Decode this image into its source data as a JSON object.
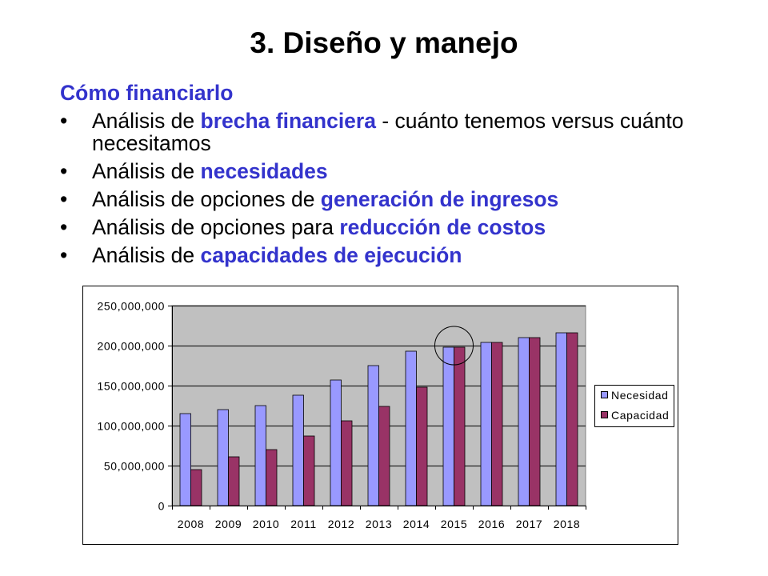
{
  "slide": {
    "title": "3. Diseño y manejo",
    "subtitle": "Cómo financiarlo",
    "bullet_marker": "•",
    "bullets": [
      {
        "prefix": "Análisis de ",
        "highlight": "brecha financiera",
        "suffix": " - cuánto tenemos versus cuánto necesitamos"
      },
      {
        "prefix": "Análisis de ",
        "highlight": "necesidades"
      },
      {
        "prefix": "Análisis de opciones de ",
        "highlight": "generación de ingresos"
      },
      {
        "prefix": "Análisis de opciones para ",
        "highlight": "reducción de costos"
      },
      {
        "prefix": "Análisis de ",
        "highlight": "capacidades de ejecución"
      }
    ]
  },
  "colors": {
    "text": "#000000",
    "highlight": "#3333CC",
    "background": "#FFFFFF"
  },
  "chart_data": {
    "type": "bar",
    "categories": [
      "2008",
      "2009",
      "2010",
      "2011",
      "2012",
      "2013",
      "2014",
      "2015",
      "2016",
      "2017",
      "2018"
    ],
    "series": [
      {
        "name": "Necesidad",
        "color": "#9999FF",
        "values": [
          115000000,
          120000000,
          125000000,
          138000000,
          157000000,
          175000000,
          193000000,
          198000000,
          204000000,
          210000000,
          216000000
        ]
      },
      {
        "name": "Capacidad",
        "color": "#993366",
        "values": [
          45000000,
          61000000,
          70000000,
          87000000,
          106000000,
          124000000,
          148000000,
          198000000,
          204000000,
          210000000,
          216000000
        ]
      }
    ],
    "ylim": [
      0,
      250000000
    ],
    "yticks": [
      {
        "value": 0,
        "label": "0"
      },
      {
        "value": 50000000,
        "label": "50,000,000"
      },
      {
        "value": 100000000,
        "label": "100,000,000"
      },
      {
        "value": 150000000,
        "label": "150,000,000"
      },
      {
        "value": 200000000,
        "label": "200,000,000"
      },
      {
        "value": 250000000,
        "label": "250,000,000"
      }
    ],
    "grid": true,
    "legend": "right",
    "plot_background": "#C0C0C0",
    "highlighted_category": "2015"
  }
}
